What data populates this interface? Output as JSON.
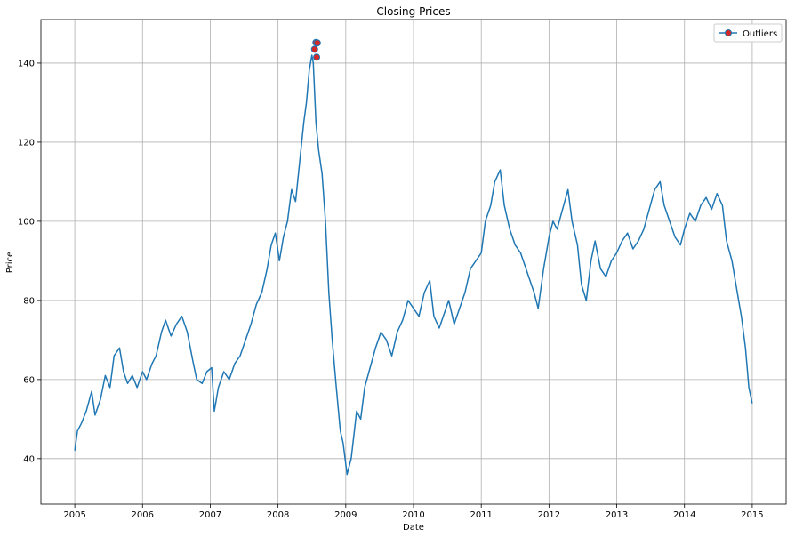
{
  "chart_data": {
    "type": "line",
    "title": "Closing Prices",
    "xlabel": "Date",
    "ylabel": "Price",
    "xlim": [
      2004.5,
      2015.5
    ],
    "ylim": [
      28.5,
      151
    ],
    "x_ticks": [
      "2005",
      "2006",
      "2007",
      "2008",
      "2009",
      "2010",
      "2011",
      "2012",
      "2013",
      "2014",
      "2015"
    ],
    "y_ticks": [
      40,
      60,
      80,
      100,
      120,
      140
    ],
    "grid": true,
    "legend": {
      "position": "top-right",
      "entries": [
        "Outliers"
      ]
    },
    "colors": {
      "line": "#1f77b4",
      "outlier_fill": "#d62728",
      "outlier_edge": "#1f77b4",
      "grid": "#b0b0b0"
    },
    "series": [
      {
        "x": [
          2005.0,
          2005.04,
          2005.1,
          2005.17,
          2005.25,
          2005.3,
          2005.38,
          2005.45,
          2005.52,
          2005.58,
          2005.66,
          2005.72,
          2005.78,
          2005.85,
          2005.92,
          2006.0,
          2006.06,
          2006.14,
          2006.2,
          2006.28,
          2006.34,
          2006.42,
          2006.5,
          2006.58,
          2006.66,
          2006.74,
          2006.8,
          2006.88,
          2006.95,
          2007.02,
          2007.06,
          2007.12,
          2007.2,
          2007.28,
          2007.36,
          2007.44,
          2007.52,
          2007.6,
          2007.68,
          2007.76,
          2007.84,
          2007.9,
          2007.96,
          2008.02,
          2008.08,
          2008.14,
          2008.2,
          2008.26,
          2008.32,
          2008.38,
          2008.42,
          2008.46,
          2008.5,
          2008.52,
          2008.56,
          2008.6,
          2008.65,
          2008.7,
          2008.75,
          2008.8,
          2008.86,
          2008.92,
          2008.96,
          2009.02,
          2009.08,
          2009.12,
          2009.16,
          2009.22,
          2009.28,
          2009.36,
          2009.44,
          2009.52,
          2009.6,
          2009.68,
          2009.76,
          2009.84,
          2009.92,
          2010.0,
          2010.08,
          2010.16,
          2010.24,
          2010.3,
          2010.38,
          2010.46,
          2010.52,
          2010.6,
          2010.68,
          2010.76,
          2010.84,
          2010.92,
          2011.0,
          2011.06,
          2011.14,
          2011.2,
          2011.28,
          2011.34,
          2011.42,
          2011.5,
          2011.58,
          2011.66,
          2011.72,
          2011.78,
          2011.84,
          2011.92,
          2012.0,
          2012.06,
          2012.12,
          2012.2,
          2012.28,
          2012.34,
          2012.42,
          2012.48,
          2012.55,
          2012.62,
          2012.68,
          2012.76,
          2012.84,
          2012.92,
          2013.0,
          2013.08,
          2013.16,
          2013.24,
          2013.32,
          2013.4,
          2013.48,
          2013.56,
          2013.64,
          2013.7,
          2013.78,
          2013.86,
          2013.94,
          2014.0,
          2014.08,
          2014.16,
          2014.24,
          2014.32,
          2014.4,
          2014.48,
          2014.56,
          2014.62,
          2014.7,
          2014.78,
          2014.84,
          2014.9,
          2014.95,
          2015.0
        ],
        "y": [
          42,
          47,
          49,
          52,
          57,
          51,
          55,
          61,
          58,
          66,
          68,
          62,
          59,
          61,
          58,
          62,
          60,
          64,
          66,
          72,
          75,
          71,
          74,
          76,
          72,
          65,
          60,
          59,
          62,
          63,
          52,
          58,
          62,
          60,
          64,
          66,
          70,
          74,
          79,
          82,
          88,
          94,
          97,
          90,
          96,
          100,
          108,
          105,
          115,
          125,
          130,
          138,
          142,
          140,
          125,
          118,
          112,
          100,
          82,
          70,
          58,
          47,
          44,
          36,
          40,
          46,
          52,
          50,
          58,
          63,
          68,
          72,
          70,
          66,
          72,
          75,
          80,
          78,
          76,
          82,
          85,
          76,
          73,
          77,
          80,
          74,
          78,
          82,
          88,
          90,
          92,
          100,
          104,
          110,
          113,
          104,
          98,
          94,
          92,
          88,
          85,
          82,
          78,
          88,
          96,
          100,
          98,
          103,
          108,
          100,
          94,
          84,
          80,
          90,
          95,
          88,
          86,
          90,
          92,
          95,
          97,
          93,
          95,
          98,
          103,
          108,
          110,
          104,
          100,
          96,
          94,
          98,
          102,
          100,
          104,
          106,
          103,
          107,
          104,
          95,
          90,
          82,
          76,
          68,
          58,
          54
        ]
      },
      {
        "name": "Outliers",
        "x": [
          2008.56,
          2008.54,
          2008.58,
          2008.57
        ],
        "y": [
          145.2,
          143.5,
          145.1,
          141.5
        ]
      }
    ]
  }
}
